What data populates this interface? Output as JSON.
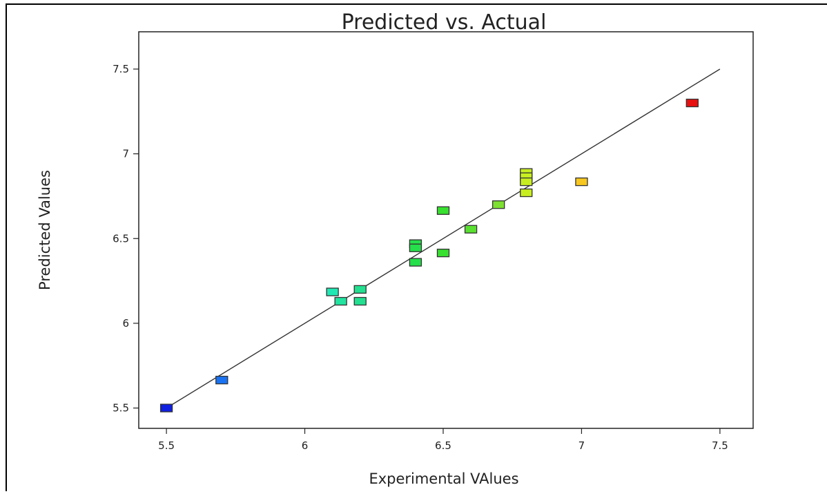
{
  "chart_data": {
    "type": "scatter",
    "title": "Predicted vs. Actual",
    "xlabel": "Experimental VAlues",
    "ylabel": "Predicted Values",
    "xlim": [
      5.4,
      7.62
    ],
    "ylim": [
      5.38,
      7.72
    ],
    "x_ticks": [
      5.5,
      6,
      6.5,
      7,
      7.5
    ],
    "y_ticks": [
      5.5,
      6,
      6.5,
      7,
      7.5
    ],
    "x_tick_labels": [
      "5.5",
      "6",
      "6.5",
      "7",
      "7.5"
    ],
    "y_tick_labels": [
      "5.5",
      "6",
      "6.5",
      "7",
      "7.5"
    ],
    "grid": false,
    "fit_line": {
      "x": [
        5.5,
        7.5
      ],
      "y": [
        5.5,
        7.5
      ],
      "color": "#333333"
    },
    "points": [
      {
        "x": 5.5,
        "y": 5.5,
        "color": "#1020e0"
      },
      {
        "x": 5.7,
        "y": 5.665,
        "color": "#1a73f2"
      },
      {
        "x": 6.1,
        "y": 6.185,
        "color": "#20e8b4"
      },
      {
        "x": 6.13,
        "y": 6.13,
        "color": "#22e3a0"
      },
      {
        "x": 6.2,
        "y": 6.2,
        "color": "#22e090"
      },
      {
        "x": 6.2,
        "y": 6.13,
        "color": "#22e090"
      },
      {
        "x": 6.4,
        "y": 6.47,
        "color": "#25e04a"
      },
      {
        "x": 6.4,
        "y": 6.445,
        "color": "#25e04a"
      },
      {
        "x": 6.4,
        "y": 6.36,
        "color": "#25e04a"
      },
      {
        "x": 6.5,
        "y": 6.665,
        "color": "#38e030"
      },
      {
        "x": 6.5,
        "y": 6.415,
        "color": "#38e030"
      },
      {
        "x": 6.6,
        "y": 6.555,
        "color": "#5ae030"
      },
      {
        "x": 6.7,
        "y": 6.7,
        "color": "#7ee030"
      },
      {
        "x": 6.8,
        "y": 6.89,
        "color": "#c8ee20"
      },
      {
        "x": 6.8,
        "y": 6.865,
        "color": "#c8ee20"
      },
      {
        "x": 6.8,
        "y": 6.835,
        "color": "#c8ee20"
      },
      {
        "x": 6.8,
        "y": 6.77,
        "color": "#c8ee20"
      },
      {
        "x": 7.0,
        "y": 6.835,
        "color": "#f8c820"
      },
      {
        "x": 7.4,
        "y": 7.3,
        "color": "#e81010"
      }
    ]
  }
}
